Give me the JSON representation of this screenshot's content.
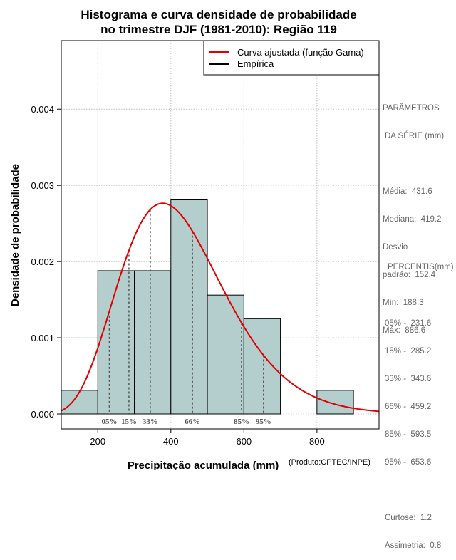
{
  "chart_data": {
    "type": "histogram",
    "title_line1": "Histograma e curva densidade de probabilidade",
    "title_line2": "no trimestre DJF (1981-2010): Região 119",
    "xlabel": "Precipitação acumulada (mm)",
    "ylabel": "Densidade de probabilidade",
    "credit": "(Produto:CPTEC/INPE)",
    "xlim": [
      100,
      970
    ],
    "ylim": [
      0,
      0.0049
    ],
    "x_ticks": [
      200,
      400,
      600,
      800
    ],
    "y_ticks": [
      {
        "value": 0.0,
        "label": "0.000"
      },
      {
        "value": 0.001,
        "label": "0.001"
      },
      {
        "value": 0.002,
        "label": "0.002"
      },
      {
        "value": 0.003,
        "label": "0.003"
      },
      {
        "value": 0.004,
        "label": "0.004"
      }
    ],
    "grid": true,
    "bins": [
      {
        "start": 100,
        "end": 200,
        "density": 0.00031
      },
      {
        "start": 200,
        "end": 300,
        "density": 0.00188
      },
      {
        "start": 300,
        "end": 400,
        "density": 0.00188
      },
      {
        "start": 400,
        "end": 500,
        "density": 0.00281
      },
      {
        "start": 500,
        "end": 600,
        "density": 0.00156
      },
      {
        "start": 600,
        "end": 700,
        "density": 0.00125
      },
      {
        "start": 700,
        "end": 800,
        "density": 0.0
      },
      {
        "start": 800,
        "end": 900,
        "density": 0.00031
      }
    ],
    "fitted_curve": {
      "name": "Curva ajustada (função Gama)",
      "color": "#e00000",
      "distribution": "gamma",
      "mean": 431.6,
      "sd": 152.4
    },
    "percentile_markers": [
      {
        "label": "05%",
        "value": 231.6
      },
      {
        "label": "15%",
        "value": 285.2
      },
      {
        "label": "33%",
        "value": 343.6
      },
      {
        "label": "66%",
        "value": 459.2
      },
      {
        "label": "85%",
        "value": 593.5
      },
      {
        "label": "95%",
        "value": 653.6
      }
    ],
    "legend": {
      "position": "top-right",
      "entries": [
        {
          "label": "Curva ajustada (função Gama)",
          "color": "#e00000"
        },
        {
          "label": "Empírica",
          "color": "#000000"
        }
      ]
    },
    "colors": {
      "bar_fill": "#b4cecd",
      "curve": "#e00000",
      "grid": "#bfbfbf",
      "marker": "#555555",
      "side_text": "#666666"
    }
  },
  "parametros": {
    "title": "PARÂMETROS",
    "subtitle": "DA SÉRIE (mm)",
    "lines": [
      "Média:  431.6",
      "Mediana:  419.2",
      "Desvio",
      "padrão:  152.4",
      "Mín:  188.3",
      "Máx:  886.6"
    ]
  },
  "percentis": {
    "title": "PERCENTIS(mm)",
    "lines": [
      "05% -  231.6",
      "15% -  285.2",
      "33% -  343.6",
      "66% -  459.2",
      "85% -  593.5",
      "95% -  653.6"
    ]
  },
  "estatisticas": {
    "lines": [
      "Curtose:  1.2",
      "Assimetria:  0.8"
    ]
  }
}
